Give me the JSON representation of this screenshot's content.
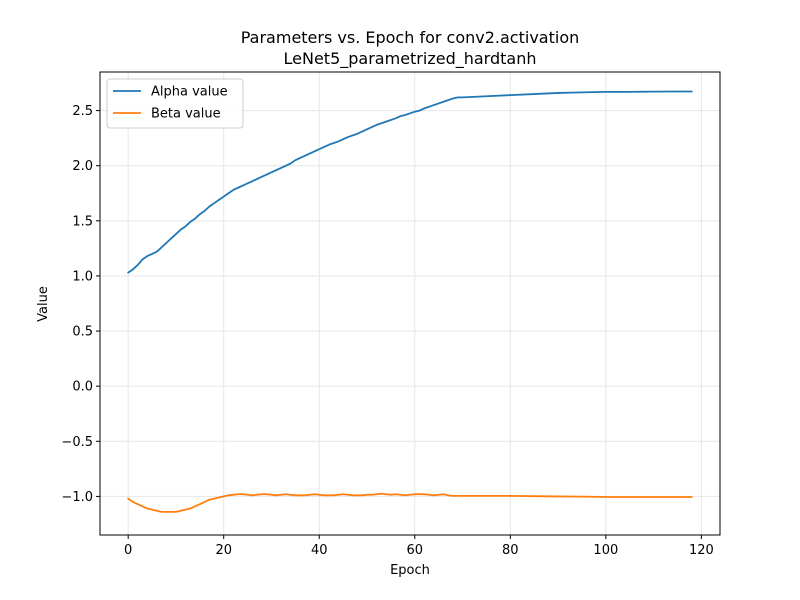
{
  "chart_data": {
    "type": "line",
    "title": "Parameters vs. Epoch for conv2.activation",
    "subtitle": "LeNet5_parametrized_hardtanh",
    "xlabel": "Epoch",
    "ylabel": "Value",
    "xlim": [
      -5.9,
      123.9
    ],
    "ylim": [
      -1.35,
      2.85
    ],
    "xticks": [
      0,
      20,
      40,
      60,
      80,
      100,
      120
    ],
    "yticks": [
      -1.0,
      -0.5,
      0.0,
      0.5,
      1.0,
      1.5,
      2.0,
      2.5
    ],
    "xtick_labels": [
      "0",
      "20",
      "40",
      "60",
      "80",
      "100",
      "120"
    ],
    "ytick_labels": [
      "−1.0",
      "−0.5",
      "0.0",
      "0.5",
      "1.0",
      "1.5",
      "2.0",
      "2.5"
    ],
    "grid": true,
    "legend_position": "top-left",
    "series": [
      {
        "name": "Alpha value",
        "color": "#1f77b4",
        "x": [
          0,
          1,
          2,
          3,
          4,
          5,
          6,
          7,
          8,
          9,
          10,
          11,
          12,
          13,
          14,
          15,
          16,
          17,
          18,
          19,
          20,
          21,
          22,
          23,
          24,
          25,
          26,
          27,
          28,
          29,
          30,
          32,
          34,
          35,
          36,
          38,
          40,
          42,
          44,
          46,
          48,
          50,
          52,
          54,
          56,
          57,
          58,
          60,
          61,
          62,
          64,
          66,
          68,
          69,
          70,
          75,
          80,
          85,
          90,
          95,
          100,
          105,
          110,
          115,
          118
        ],
        "values": [
          1.03,
          1.06,
          1.1,
          1.15,
          1.18,
          1.2,
          1.22,
          1.26,
          1.3,
          1.34,
          1.38,
          1.42,
          1.45,
          1.49,
          1.52,
          1.56,
          1.59,
          1.63,
          1.66,
          1.69,
          1.72,
          1.75,
          1.78,
          1.8,
          1.82,
          1.84,
          1.86,
          1.88,
          1.9,
          1.92,
          1.94,
          1.98,
          2.02,
          2.05,
          2.07,
          2.11,
          2.15,
          2.19,
          2.22,
          2.26,
          2.29,
          2.33,
          2.37,
          2.4,
          2.43,
          2.45,
          2.46,
          2.49,
          2.5,
          2.52,
          2.55,
          2.58,
          2.61,
          2.62,
          2.62,
          2.63,
          2.64,
          2.65,
          2.66,
          2.665,
          2.67,
          2.67,
          2.672,
          2.673,
          2.673
        ]
      },
      {
        "name": "Beta value",
        "color": "#ff7f0e",
        "x": [
          0,
          1,
          2,
          3,
          4,
          5,
          6,
          7,
          8,
          9,
          10,
          11,
          12,
          13,
          14,
          15,
          16,
          17,
          18,
          19,
          20,
          21,
          22,
          23,
          24,
          25,
          26,
          27,
          28,
          29,
          30,
          31,
          32,
          33,
          34,
          35,
          36,
          37,
          38,
          39,
          40,
          41,
          42,
          43,
          44,
          45,
          46,
          47,
          48,
          49,
          50,
          51,
          52,
          53,
          54,
          55,
          56,
          57,
          58,
          59,
          60,
          61,
          62,
          63,
          64,
          65,
          66,
          67,
          68,
          70,
          75,
          80,
          85,
          90,
          95,
          100,
          105,
          110,
          115,
          118
        ],
        "values": [
          -1.02,
          -1.05,
          -1.07,
          -1.09,
          -1.11,
          -1.12,
          -1.13,
          -1.14,
          -1.14,
          -1.14,
          -1.14,
          -1.13,
          -1.12,
          -1.11,
          -1.09,
          -1.07,
          -1.05,
          -1.03,
          -1.02,
          -1.01,
          -1.0,
          -0.99,
          -0.985,
          -0.98,
          -0.98,
          -0.985,
          -0.99,
          -0.985,
          -0.98,
          -0.98,
          -0.985,
          -0.99,
          -0.985,
          -0.98,
          -0.985,
          -0.99,
          -0.99,
          -0.99,
          -0.985,
          -0.98,
          -0.985,
          -0.99,
          -0.99,
          -0.99,
          -0.985,
          -0.98,
          -0.985,
          -0.99,
          -0.99,
          -0.99,
          -0.985,
          -0.985,
          -0.98,
          -0.975,
          -0.98,
          -0.985,
          -0.98,
          -0.985,
          -0.99,
          -0.985,
          -0.98,
          -0.98,
          -0.98,
          -0.985,
          -0.99,
          -0.985,
          -0.98,
          -0.99,
          -0.995,
          -0.995,
          -0.995,
          -0.995,
          -0.998,
          -1.0,
          -1.002,
          -1.005,
          -1.005,
          -1.005,
          -1.005,
          -1.005
        ]
      }
    ]
  }
}
